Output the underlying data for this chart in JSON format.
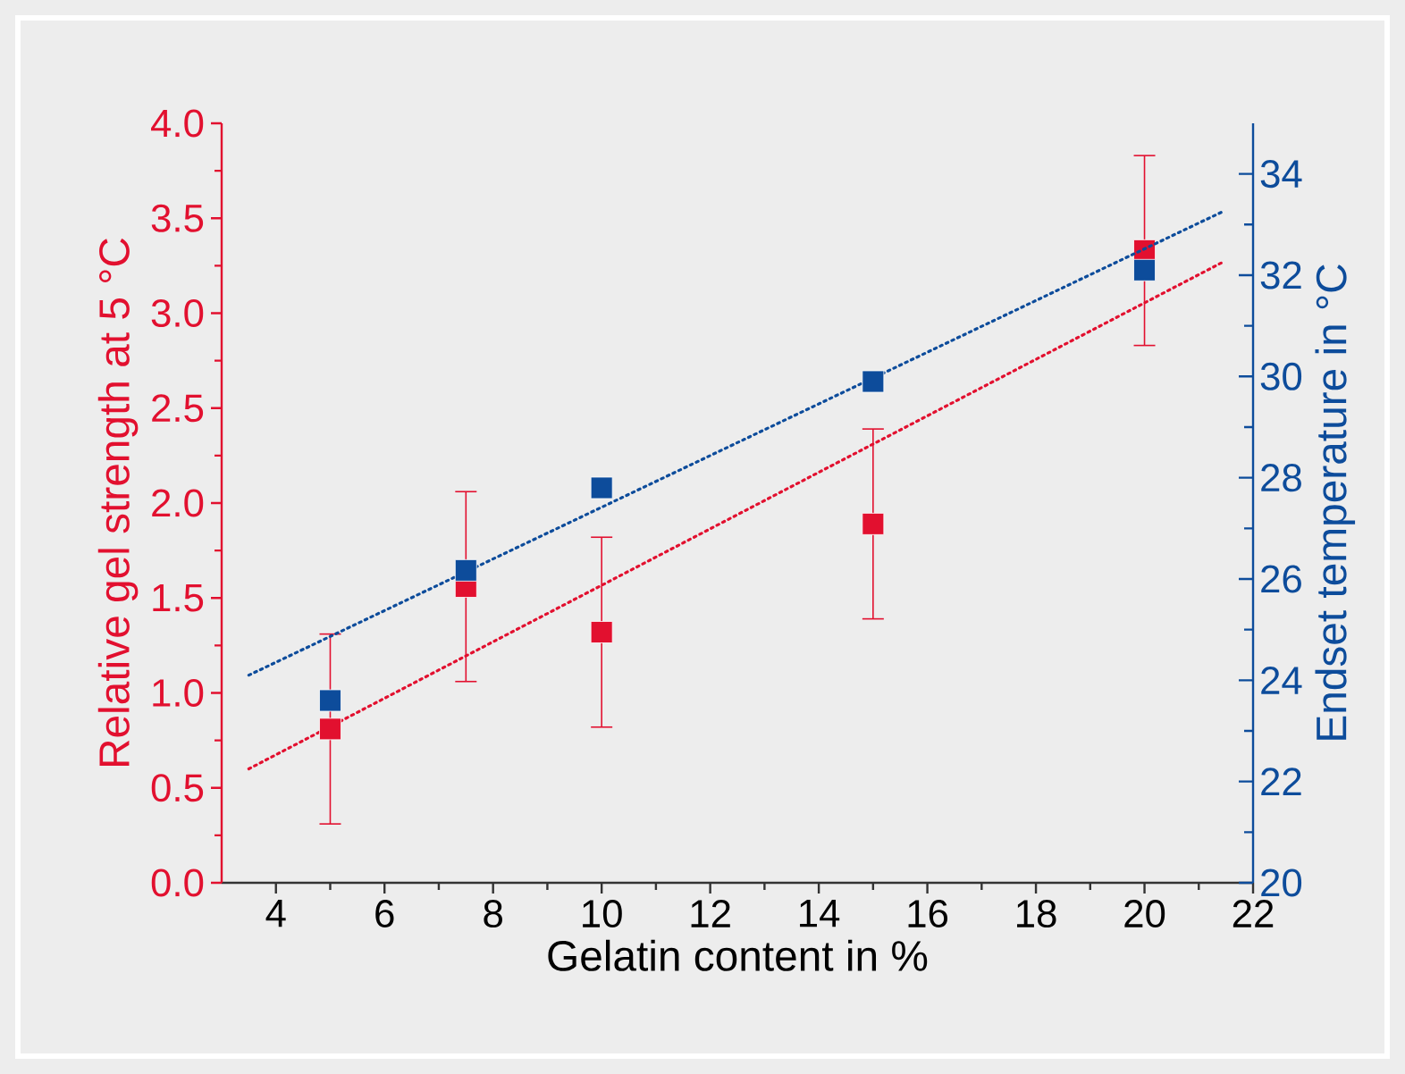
{
  "chart_data": {
    "type": "scatter",
    "xlabel": "Gelatin content in %",
    "ylabel": "Relative gel strength at 5 °C",
    "y2label": "Endset temperature in °C",
    "marker": "square",
    "xlim": [
      3,
      22
    ],
    "xticks": [
      4,
      6,
      8,
      10,
      12,
      14,
      16,
      18,
      20,
      22
    ],
    "ylim": [
      0,
      4
    ],
    "yticks": [
      {
        "value": 0,
        "label": "0.0"
      },
      {
        "value": 0.5,
        "label": "0.5"
      },
      {
        "value": 1,
        "label": "1.0"
      },
      {
        "value": 1.5,
        "label": "1.5"
      },
      {
        "value": 2,
        "label": "2.0"
      },
      {
        "value": 2.5,
        "label": "2.5"
      },
      {
        "value": 3,
        "label": "3.0"
      },
      {
        "value": 3.5,
        "label": "3.5"
      },
      {
        "value": 4,
        "label": "4.0"
      }
    ],
    "y2lim": [
      20,
      35
    ],
    "y2ticks": [
      20,
      22,
      24,
      26,
      28,
      30,
      32,
      34
    ],
    "series": [
      {
        "type": "line",
        "x": [
          3.5,
          21.45
        ],
        "values": [
          0.6,
          3.27
        ],
        "color": "#e2102f",
        "line_style": "dotted",
        "marker": "none"
      },
      {
        "type": "line",
        "x": [
          3.5,
          21.45
        ],
        "values": [
          24.1,
          33.26
        ],
        "color": "#0d4c9b",
        "line_style": "dotted",
        "marker": "none",
        "axis": "y2"
      },
      {
        "x": [
          5,
          7.5,
          10,
          15,
          20
        ],
        "values": [
          0.81,
          1.56,
          1.32,
          1.89,
          3.33
        ],
        "errors": [
          0.5,
          0.5,
          0.5,
          0.5,
          0.5
        ],
        "color": "#e2102f"
      },
      {
        "x": [
          5,
          7.5,
          10,
          15,
          20
        ],
        "values": [
          23.6,
          26.17,
          27.8,
          29.9,
          32.1
        ],
        "color": "#0d4c9b",
        "axis": "y2"
      }
    ]
  }
}
